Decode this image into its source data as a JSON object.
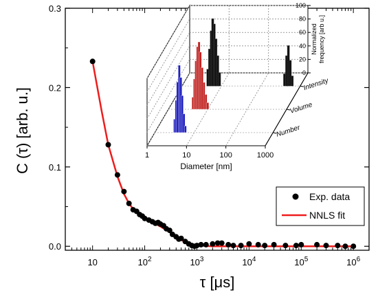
{
  "chart_data": [
    {
      "type": "scatter",
      "xscale": "log",
      "xlim": [
        3,
        2000000
      ],
      "ylim": [
        -0.005,
        0.3
      ],
      "xlabel": "τ [μs]",
      "ylabel": "C (τ) [arb. u.]",
      "yticks": [
        "0.0",
        "0.1",
        "0.2",
        "0.3"
      ],
      "ytick_values": [
        0.0,
        0.1,
        0.2,
        0.3
      ],
      "xticks": [
        {
          "base": "10",
          "exp": "",
          "value": 10
        },
        {
          "base": "10",
          "exp": "2",
          "value": 100
        },
        {
          "base": "10",
          "exp": "3",
          "value": 1000
        },
        {
          "base": "10",
          "exp": "4",
          "value": 10000
        },
        {
          "base": "10",
          "exp": "5",
          "value": 100000
        },
        {
          "base": "10",
          "exp": "6",
          "value": 1000000
        }
      ],
      "legend_position": "bottom-right",
      "series": [
        {
          "name": "Exp. data",
          "style": "markers",
          "color": "#000000",
          "x": [
            10,
            20,
            30,
            40,
            50,
            60,
            70,
            80,
            90,
            100,
            120,
            140,
            160,
            180,
            200,
            230,
            260,
            300,
            340,
            400,
            450,
            500,
            600,
            700,
            800,
            900,
            1000,
            1200,
            1500,
            2000,
            2500,
            3000,
            4000,
            5000,
            7000,
            10000,
            15000,
            20000,
            30000,
            50000,
            80000,
            100000,
            200000,
            300000,
            500000,
            700000,
            1000000
          ],
          "y": [
            0.233,
            0.128,
            0.09,
            0.069,
            0.054,
            0.046,
            0.044,
            0.04,
            0.038,
            0.035,
            0.033,
            0.031,
            0.029,
            0.03,
            0.028,
            0.026,
            0.022,
            0.02,
            0.015,
            0.012,
            0.009,
            0.01,
            0.006,
            0.003,
            0.001,
            0.0,
            0.001,
            0.002,
            0.002,
            0.003,
            0.004,
            0.004,
            0.002,
            0.001,
            0.001,
            0.003,
            0.002,
            0.001,
            0.002,
            0.001,
            0.001,
            0.002,
            0.002,
            0.001,
            0.001,
            0.0,
            0.0
          ]
        },
        {
          "name": "NNLS fit",
          "style": "line",
          "color": "#ee1c1c",
          "x": [
            10,
            15,
            20,
            30,
            40,
            50,
            60,
            80,
            100,
            150,
            200,
            300,
            500,
            800,
            1000,
            2000,
            5000,
            10000,
            100000,
            1000000
          ],
          "y": [
            0.233,
            0.17,
            0.128,
            0.088,
            0.066,
            0.054,
            0.047,
            0.039,
            0.035,
            0.029,
            0.025,
            0.018,
            0.008,
            0.002,
            0.001,
            0.0,
            0.0,
            0.0,
            0.0,
            0.0
          ]
        }
      ]
    },
    {
      "type": "bar",
      "subtype": "3d-bar-inset",
      "xscale": "log",
      "xlabel": "Diameter [nm]",
      "xticks": [
        "1",
        "10",
        "100",
        "1000"
      ],
      "xtick_values": [
        1,
        10,
        100,
        1000
      ],
      "zlabel": [
        "Normalized",
        "frequency [arb u.]"
      ],
      "zticks": [
        "0",
        "20",
        "40",
        "60",
        "80",
        "100"
      ],
      "ztick_values": [
        0,
        20,
        40,
        60,
        80,
        100
      ],
      "categories": [
        "Number",
        "Volume",
        "Intensity"
      ],
      "series": [
        {
          "name": "Number",
          "color": "#1f1fbf",
          "x": [
            3.2,
            3.5,
            3.8,
            4.2,
            4.6,
            5.0,
            5.5,
            6.0
          ],
          "values": [
            20,
            48,
            75,
            100,
            82,
            55,
            28,
            10
          ]
        },
        {
          "name": "Volume",
          "color": "#c0201e",
          "x": [
            4.2,
            4.6,
            5.0,
            5.5,
            6.0,
            6.5,
            7.2,
            8.0,
            9.0,
            10.0
          ],
          "values": [
            18,
            45,
            72,
            93,
            100,
            85,
            62,
            40,
            22,
            10
          ]
        },
        {
          "name": "Intensity",
          "color": "#111111",
          "x": [
            4.5,
            5.0,
            5.5,
            6.0,
            6.6,
            7.3,
            8.1,
            9.0,
            400,
            450,
            500,
            560,
            630
          ],
          "values": [
            25,
            55,
            82,
            100,
            92,
            70,
            45,
            20,
            18,
            45,
            60,
            38,
            15
          ]
        }
      ]
    }
  ]
}
